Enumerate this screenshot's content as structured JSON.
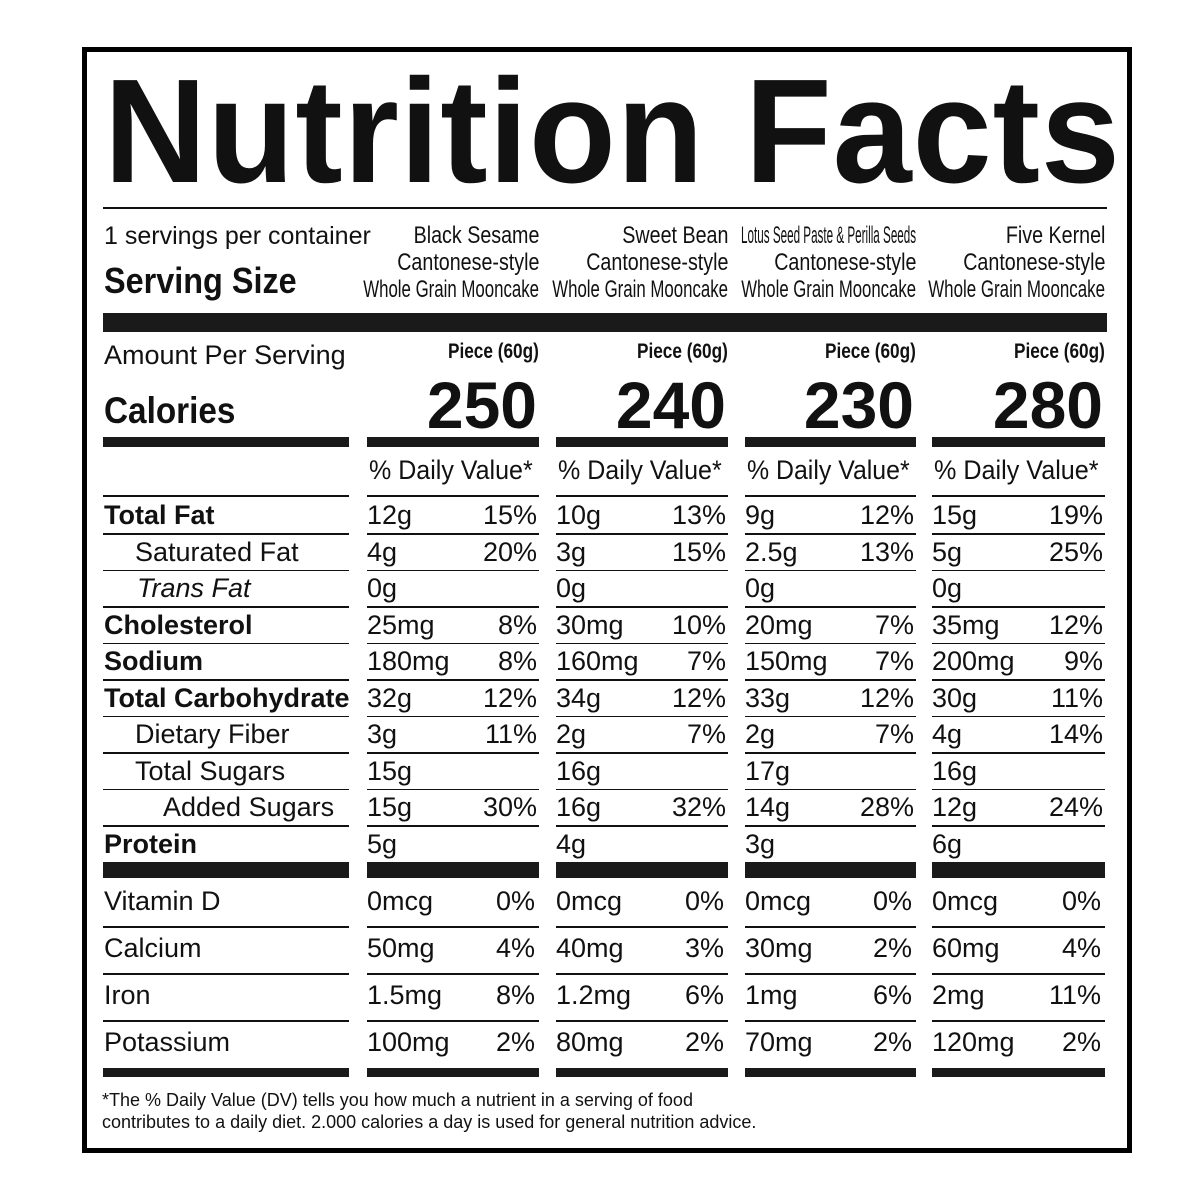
{
  "title": "Nutrition Facts",
  "servings_per_container": "1 servings per container",
  "serving_size_label": "Serving Size",
  "amount_per_serving_label": "Amount Per Serving",
  "calories_label": "Calories",
  "daily_value_label": "% Daily Value*",
  "products": [
    {
      "name_lines": [
        "Black Sesame",
        "Cantonese-style",
        "Whole Grain Mooncake"
      ],
      "serving": "Piece (60g)",
      "calories": "250"
    },
    {
      "name_lines": [
        "Sweet Bean",
        "Cantonese-style",
        "Whole Grain Mooncake"
      ],
      "serving": "Piece (60g)",
      "calories": "240"
    },
    {
      "name_lines": [
        "Lotus Seed Paste & Perilla Seeds",
        "Cantonese-style",
        "Whole Grain Mooncake"
      ],
      "serving": "Piece (60g)",
      "calories": "230"
    },
    {
      "name_lines": [
        "Five Kernel",
        "Cantonese-style",
        "Whole Grain Mooncake"
      ],
      "serving": "Piece (60g)",
      "calories": "280"
    }
  ],
  "nutrients": [
    {
      "label": "Total Fat",
      "style": "bold",
      "values": [
        [
          "12g",
          "15%"
        ],
        [
          "10g",
          "13%"
        ],
        [
          "9g",
          "12%"
        ],
        [
          "15g",
          "19%"
        ]
      ]
    },
    {
      "label": "Saturated Fat",
      "style": "indent",
      "values": [
        [
          "4g",
          "20%"
        ],
        [
          "3g",
          "15%"
        ],
        [
          "2.5g",
          "13%"
        ],
        [
          "5g",
          "25%"
        ]
      ]
    },
    {
      "label": "Trans Fat",
      "style": "italic",
      "values": [
        [
          "0g",
          ""
        ],
        [
          "0g",
          ""
        ],
        [
          "0g",
          ""
        ],
        [
          "0g",
          ""
        ]
      ]
    },
    {
      "label": "Cholesterol",
      "style": "bold",
      "values": [
        [
          "25mg",
          "8%"
        ],
        [
          "30mg",
          "10%"
        ],
        [
          "20mg",
          "7%"
        ],
        [
          "35mg",
          "12%"
        ]
      ]
    },
    {
      "label": "Sodium",
      "style": "bold",
      "values": [
        [
          "180mg",
          "8%"
        ],
        [
          "160mg",
          "7%"
        ],
        [
          "150mg",
          "7%"
        ],
        [
          "200mg",
          "9%"
        ]
      ]
    },
    {
      "label": "Total Carbohydrate",
      "style": "bold",
      "values": [
        [
          "32g",
          "12%"
        ],
        [
          "34g",
          "12%"
        ],
        [
          "33g",
          "12%"
        ],
        [
          "30g",
          "11%"
        ]
      ]
    },
    {
      "label": "Dietary Fiber",
      "style": "indent",
      "values": [
        [
          "3g",
          "11%"
        ],
        [
          "2g",
          "7%"
        ],
        [
          "2g",
          "7%"
        ],
        [
          "4g",
          "14%"
        ]
      ]
    },
    {
      "label": "Total Sugars",
      "style": "indent",
      "values": [
        [
          "15g",
          ""
        ],
        [
          "16g",
          ""
        ],
        [
          "17g",
          ""
        ],
        [
          "16g",
          ""
        ]
      ]
    },
    {
      "label": "Added Sugars",
      "style": "indent2",
      "values": [
        [
          "15g",
          "30%"
        ],
        [
          "16g",
          "32%"
        ],
        [
          "14g",
          "28%"
        ],
        [
          "12g",
          "24%"
        ]
      ]
    },
    {
      "label": "Protein",
      "style": "bold",
      "values": [
        [
          "5g",
          ""
        ],
        [
          "4g",
          ""
        ],
        [
          "3g",
          ""
        ],
        [
          "6g",
          ""
        ]
      ]
    }
  ],
  "vitamins": [
    {
      "label": "Vitamin D",
      "values": [
        [
          "0mcg",
          "0%"
        ],
        [
          "0mcg",
          "0%"
        ],
        [
          "0mcg",
          "0%"
        ],
        [
          "0mcg",
          "0%"
        ]
      ]
    },
    {
      "label": "Calcium",
      "values": [
        [
          "50mg",
          "4%"
        ],
        [
          "40mg",
          "3%"
        ],
        [
          "30mg",
          "2%"
        ],
        [
          "60mg",
          "4%"
        ]
      ]
    },
    {
      "label": "Iron",
      "values": [
        [
          "1.5mg",
          "8%"
        ],
        [
          "1.2mg",
          "6%"
        ],
        [
          "1mg",
          "6%"
        ],
        [
          "2mg",
          "11%"
        ]
      ]
    },
    {
      "label": "Potassium",
      "values": [
        [
          "100mg",
          "2%"
        ],
        [
          "80mg",
          "2%"
        ],
        [
          "70mg",
          "2%"
        ],
        [
          "120mg",
          "2%"
        ]
      ]
    }
  ],
  "footnote_lines": [
    "*The % Daily Value (DV) tells you how much a nutrient in a serving of food",
    "contributes to a daily diet. 2.000 calories a day is used for general nutrition advice."
  ]
}
